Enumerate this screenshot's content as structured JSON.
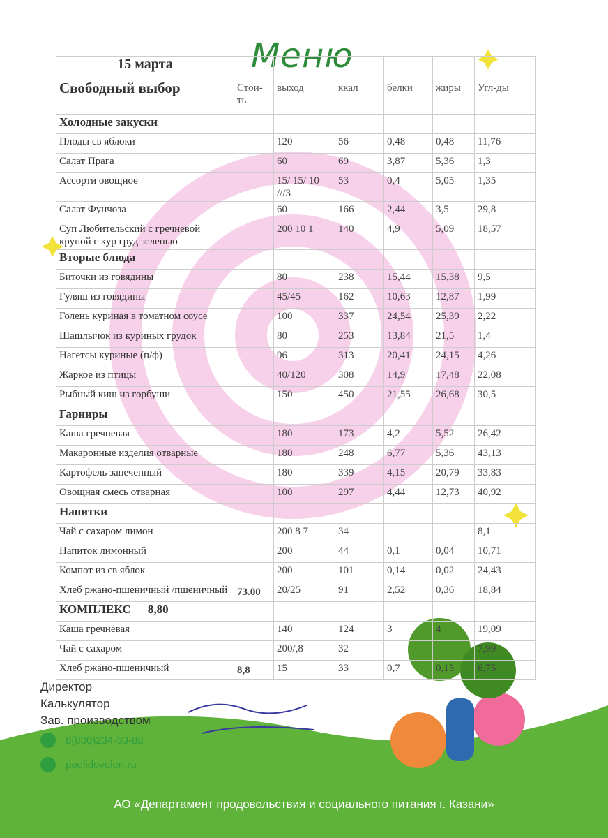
{
  "header": {
    "title": "Меню",
    "date": "15 марта",
    "subtitle": "Свободный выбор",
    "columns": {
      "price": "Стои-ть",
      "portion": "выход",
      "kcal": "ккал",
      "protein": "белки",
      "fat": "жиры",
      "carbs": "Угл-ды"
    }
  },
  "table": {
    "sections": [
      {
        "title": "Холодные закуски",
        "rows": [
          {
            "name": "Плоды св яблоки",
            "portion": "120",
            "kcal": "56",
            "protein": "0,48",
            "fat": "0,48",
            "carbs": "11,76"
          },
          {
            "name": "Салат Прага",
            "portion": "60",
            "kcal": "69",
            "protein": "3,87",
            "fat": "5,36",
            "carbs": "1,3"
          },
          {
            "name": "Ассорти овощное",
            "portion": "15/ 15/ 10 ///3",
            "kcal": "53",
            "protein": "0,4",
            "fat": "5,05",
            "carbs": "1,35"
          },
          {
            "name": "Салат Фунчоза",
            "portion": "60",
            "kcal": "166",
            "protein": "2,44",
            "fat": "3,5",
            "carbs": "29,8"
          },
          {
            "name": "Суп Любительский с гречневой крупой с кур груд зеленью",
            "portion": "200 10 1",
            "kcal": "140",
            "protein": "4,9",
            "fat": "5,09",
            "carbs": "18,57"
          }
        ]
      },
      {
        "title": "Вторые блюда",
        "rows": [
          {
            "name": "Биточки из говядины",
            "portion": "80",
            "kcal": "238",
            "protein": "15,44",
            "fat": "15,38",
            "carbs": "9,5"
          },
          {
            "name": "Гуляш из говядины",
            "portion": "45/45",
            "kcal": "162",
            "protein": "10,63",
            "fat": "12,87",
            "carbs": "1,99"
          },
          {
            "name": "Голень куриная в томатном соусе",
            "portion": "100",
            "kcal": "337",
            "protein": "24,54",
            "fat": "25,39",
            "carbs": "2,22"
          },
          {
            "name": "Шашлычок из куриных грудок",
            "portion": "80",
            "kcal": "253",
            "protein": "13,84",
            "fat": "21,5",
            "carbs": "1,4"
          },
          {
            "name": "Нагетсы куриные (п/ф)",
            "portion": "96",
            "kcal": "313",
            "protein": "20,41",
            "fat": "24,15",
            "carbs": "4,26"
          },
          {
            "name": "Жаркое из птицы",
            "portion": "40/120",
            "kcal": "308",
            "protein": "14,9",
            "fat": "17,48",
            "carbs": "22,08"
          },
          {
            "name": "Рыбный киш из горбуши",
            "portion": "150",
            "kcal": "450",
            "protein": "21,55",
            "fat": "26,68",
            "carbs": "30,5"
          }
        ]
      },
      {
        "title": "Гарниры",
        "rows": [
          {
            "name": "Каша гречневая",
            "portion": "180",
            "kcal": "173",
            "protein": "4,2",
            "fat": "5,52",
            "carbs": "26,42"
          },
          {
            "name": "Макаронные изделия отварные",
            "portion": "180",
            "kcal": "248",
            "protein": "6,77",
            "fat": "5,36",
            "carbs": "43,13"
          },
          {
            "name": "Картофель запеченный",
            "portion": "180",
            "kcal": "339",
            "protein": "4,15",
            "fat": "20,79",
            "carbs": "33,83"
          },
          {
            "name": "Овощная смесь отварная",
            "portion": "100",
            "kcal": "297",
            "protein": "4,44",
            "fat": "12,73",
            "carbs": "40,92"
          }
        ]
      },
      {
        "title": "Напитки",
        "rows": [
          {
            "name": "Чай с сахаром лимон",
            "portion": "200 8 7",
            "kcal": "34",
            "carbs": "8,1"
          },
          {
            "name": "Напиток лимонный",
            "portion": "200",
            "kcal": "44",
            "protein": "0,1",
            "fat": "0,04",
            "carbs": "10,71"
          },
          {
            "name": "Компот из св яблок",
            "portion": "200",
            "kcal": "101",
            "protein": "0,14",
            "fat": "0,02",
            "carbs": "24,43"
          },
          {
            "name": "Хлеб ржано-пшеничный /пшеничный",
            "price": "73.00",
            "portion": "20/25",
            "kcal": "91",
            "protein": "2,52",
            "fat": "0,36",
            "carbs": "18,84"
          }
        ]
      },
      {
        "title": "КОМПЛЕКС",
        "price": "8,80",
        "rows": [
          {
            "name": "Каша гречневая",
            "portion": "140",
            "kcal": "124",
            "protein": "3",
            "fat": "4",
            "carbs": "19,09"
          },
          {
            "name": "Чай с сахаром",
            "portion": "200/,8",
            "kcal": "32",
            "carbs": "7,99"
          },
          {
            "name": "Хлеб ржано-пшеничный",
            "price": "8,8",
            "portion": "15",
            "kcal": "33",
            "protein": "0,7",
            "fat": "0,15",
            "carbs": "6,75"
          }
        ]
      }
    ]
  },
  "footer": {
    "roles": [
      "Директор",
      "Калькулятор",
      "Зав. производством"
    ],
    "phone": "8(800)234-33-88",
    "site": "poelidovolen.ru",
    "org": "АО «Департамент продовольствия и социального питания г. Казани»"
  }
}
